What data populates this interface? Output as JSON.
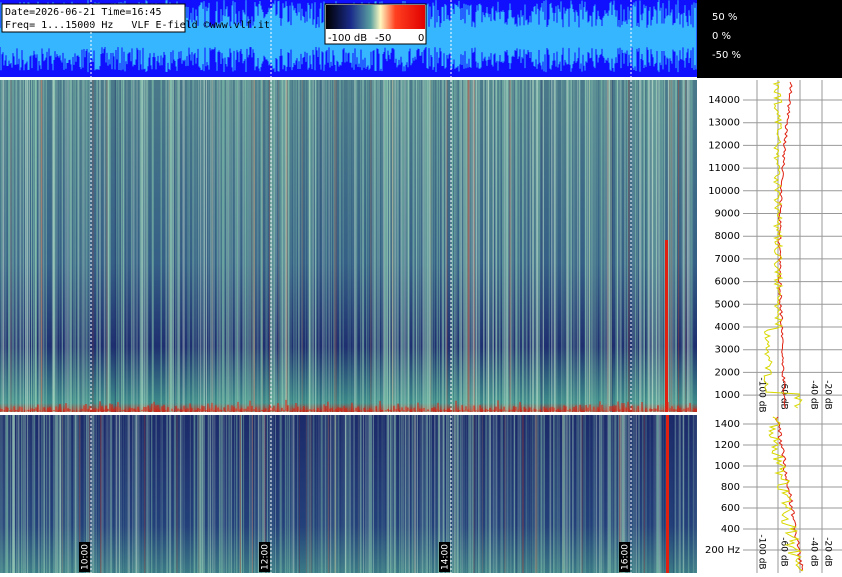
{
  "header": {
    "line1": "Date=2026-06-21 Time=16:45",
    "line2": "Freq= 1...15000 Hz   VLF E-field ©www.vlf.it"
  },
  "colorbar": {
    "labels": [
      "-100 dB",
      "-50",
      "0"
    ]
  },
  "waveform": {
    "ticks": [
      "50 %",
      "0 %",
      "-50 %"
    ]
  },
  "upper_freq_ticks": [
    "14000",
    "13000",
    "12000",
    "11000",
    "10000",
    "9000",
    "8000",
    "7000",
    "6000",
    "5000",
    "4000",
    "3000",
    "2000",
    "1000"
  ],
  "lower_freq_ticks": [
    "1400",
    "1200",
    "1000",
    "800",
    "600",
    "400",
    "200 Hz"
  ],
  "time_labels": [
    "10:00",
    "12:00",
    "14:00",
    "16:00"
  ],
  "db_labels": [
    "-100 dB",
    "-60 dB",
    "-40 dB",
    "-20 dB"
  ]
}
